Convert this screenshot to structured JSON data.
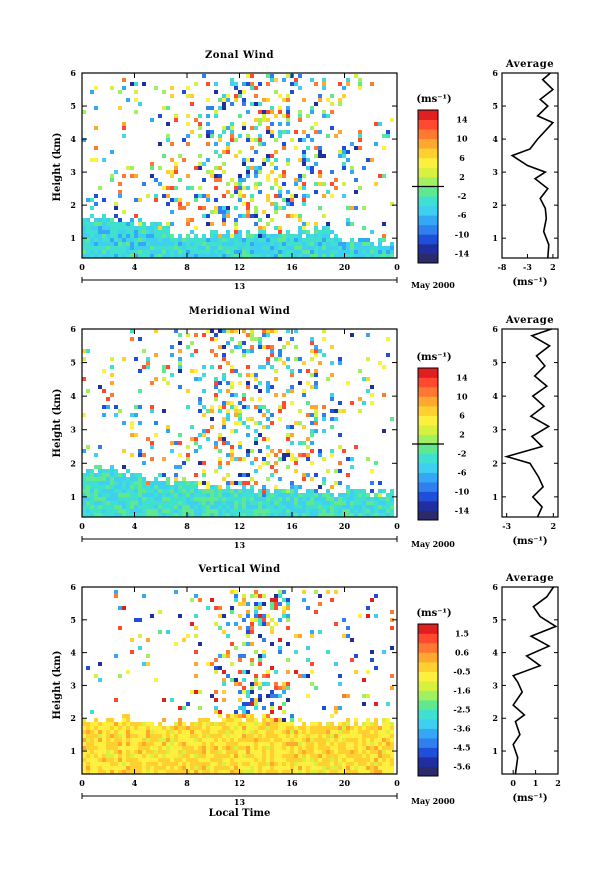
{
  "chart_data": [
    {
      "type": "heatmap",
      "title": "Zonal Wind",
      "xlabel": "",
      "ylabel": "Height (km)",
      "xticks": [
        "0",
        "4",
        "8",
        "12",
        "16",
        "20",
        "0"
      ],
      "yticks": [
        "1",
        "2",
        "3",
        "4",
        "5",
        "6"
      ],
      "xlim": [
        0,
        24
      ],
      "ylim": [
        0.4,
        6
      ],
      "day_label": "13",
      "date_label": "May 2000",
      "colorbar": {
        "unit": "(ms⁻¹)",
        "ticks": [
          "14",
          "10",
          "6",
          "2",
          "-2",
          "-6",
          "-10",
          "-14"
        ],
        "range": [
          -16,
          16
        ],
        "zero_line": 0
      },
      "field": {
        "surface_value": -4,
        "surface_top_km": [
          1.6,
          1.5,
          1.4,
          1.1,
          1.1,
          1.1,
          1.2,
          1.2,
          1.2,
          1.0,
          0.9
        ],
        "density_by_hour": [
          0.15,
          0.2,
          0.22,
          0.3,
          0.45,
          0.55,
          0.6,
          0.55,
          0.45,
          0.3,
          0.22,
          0.18
        ],
        "upper_value_range": [
          -14,
          14
        ]
      },
      "average_profile": {
        "title": "Average",
        "xlabel": "(ms⁻¹)",
        "xticks": [
          "-8",
          "-3",
          "2"
        ],
        "xlim": [
          -8,
          3
        ],
        "height_km": [
          0.4,
          0.8,
          1.2,
          1.6,
          1.9,
          2.2,
          2.5,
          2.8,
          3.0,
          3.2,
          3.5,
          3.7,
          4.0,
          4.3,
          4.5,
          4.7,
          5.0,
          5.2,
          5.5,
          5.8,
          6.0
        ],
        "values": [
          1.0,
          1.2,
          0.2,
          0.7,
          0.5,
          -0.5,
          1.0,
          -1.5,
          0.5,
          -3.0,
          -6.0,
          -2.5,
          -1.0,
          0.8,
          2.0,
          -1.0,
          1.0,
          -0.5,
          2.0,
          0.0,
          1.5
        ]
      }
    },
    {
      "type": "heatmap",
      "title": "Meridional Wind",
      "xlabel": "",
      "ylabel": "Height (km)",
      "xticks": [
        "0",
        "4",
        "8",
        "12",
        "16",
        "20",
        "0"
      ],
      "yticks": [
        "1",
        "2",
        "3",
        "4",
        "5",
        "6"
      ],
      "xlim": [
        0,
        24
      ],
      "ylim": [
        0.4,
        6
      ],
      "day_label": "13",
      "date_label": "May 2000",
      "colorbar": {
        "unit": "(ms⁻¹)",
        "ticks": [
          "14",
          "10",
          "6",
          "2",
          "-2",
          "-6",
          "-10",
          "-14"
        ],
        "range": [
          -16,
          16
        ],
        "zero_line": 0
      },
      "field": {
        "surface_value": -3,
        "surface_top_km": [
          1.8,
          1.7,
          1.5,
          1.4,
          1.3,
          1.3,
          1.2,
          1.2,
          1.1,
          1.2,
          1.1
        ],
        "density_by_hour": [
          0.12,
          0.15,
          0.18,
          0.25,
          0.35,
          0.5,
          0.6,
          0.5,
          0.4,
          0.28,
          0.2,
          0.15
        ],
        "upper_value_range": [
          -14,
          14
        ]
      },
      "average_profile": {
        "title": "Average",
        "xlabel": "(ms⁻¹)",
        "xticks": [
          "-3",
          "2"
        ],
        "xlim": [
          -3.5,
          2.5
        ],
        "height_km": [
          0.4,
          0.7,
          1.0,
          1.3,
          1.6,
          2.0,
          2.2,
          2.5,
          2.8,
          3.1,
          3.4,
          3.7,
          4.0,
          4.3,
          4.6,
          4.9,
          5.2,
          5.5,
          5.8,
          6.0
        ],
        "values": [
          0.3,
          0.8,
          -0.2,
          0.9,
          0.4,
          -0.5,
          -3.0,
          0.8,
          -0.3,
          1.5,
          -0.4,
          1.0,
          -0.2,
          1.3,
          0.0,
          1.1,
          0.2,
          1.6,
          -0.3,
          1.8
        ]
      }
    },
    {
      "type": "heatmap",
      "title": "Vertical Wind",
      "xlabel": "Local Time",
      "ylabel": "Height (km)",
      "xticks": [
        "0",
        "4",
        "8",
        "12",
        "16",
        "20",
        "0"
      ],
      "yticks": [
        "1",
        "2",
        "3",
        "4",
        "5",
        "6"
      ],
      "xlim": [
        0,
        24
      ],
      "ylim": [
        0.3,
        6
      ],
      "day_label": "13",
      "date_label": "May 2000",
      "colorbar": {
        "unit": "(ms⁻¹)",
        "ticks": [
          "1.5",
          "0.6",
          "-0.5",
          "-1.6",
          "-2.5",
          "-3.6",
          "-4.5",
          "-5.6"
        ],
        "range": [
          -6,
          2
        ],
        "zero_line": null
      },
      "field": {
        "surface_value": -0.5,
        "surface_top_km": [
          2.0,
          2.0,
          1.9,
          1.9,
          2.0,
          2.0,
          2.0,
          1.9,
          1.9,
          1.9,
          1.9
        ],
        "density_by_hour": [
          0.06,
          0.07,
          0.09,
          0.12,
          0.2,
          0.45,
          0.7,
          0.55,
          0.25,
          0.12,
          0.1,
          0.08
        ],
        "upper_value_range": [
          -5.5,
          1.8
        ]
      },
      "average_profile": {
        "title": "Average",
        "xlabel": "(ms⁻¹)",
        "xticks": [
          "0",
          "1",
          "2"
        ],
        "xlim": [
          -0.5,
          2
        ],
        "height_km": [
          0.3,
          0.8,
          1.2,
          1.5,
          1.9,
          2.1,
          2.4,
          2.8,
          3.1,
          3.3,
          3.6,
          3.9,
          4.2,
          4.5,
          4.8,
          5.1,
          5.4,
          5.7,
          6.0
        ],
        "values": [
          0.1,
          0.2,
          0.0,
          0.3,
          0.1,
          0.5,
          0.0,
          0.4,
          0.2,
          0.0,
          1.2,
          0.6,
          1.6,
          0.8,
          1.9,
          1.2,
          0.9,
          1.5,
          1.8
        ]
      }
    }
  ]
}
